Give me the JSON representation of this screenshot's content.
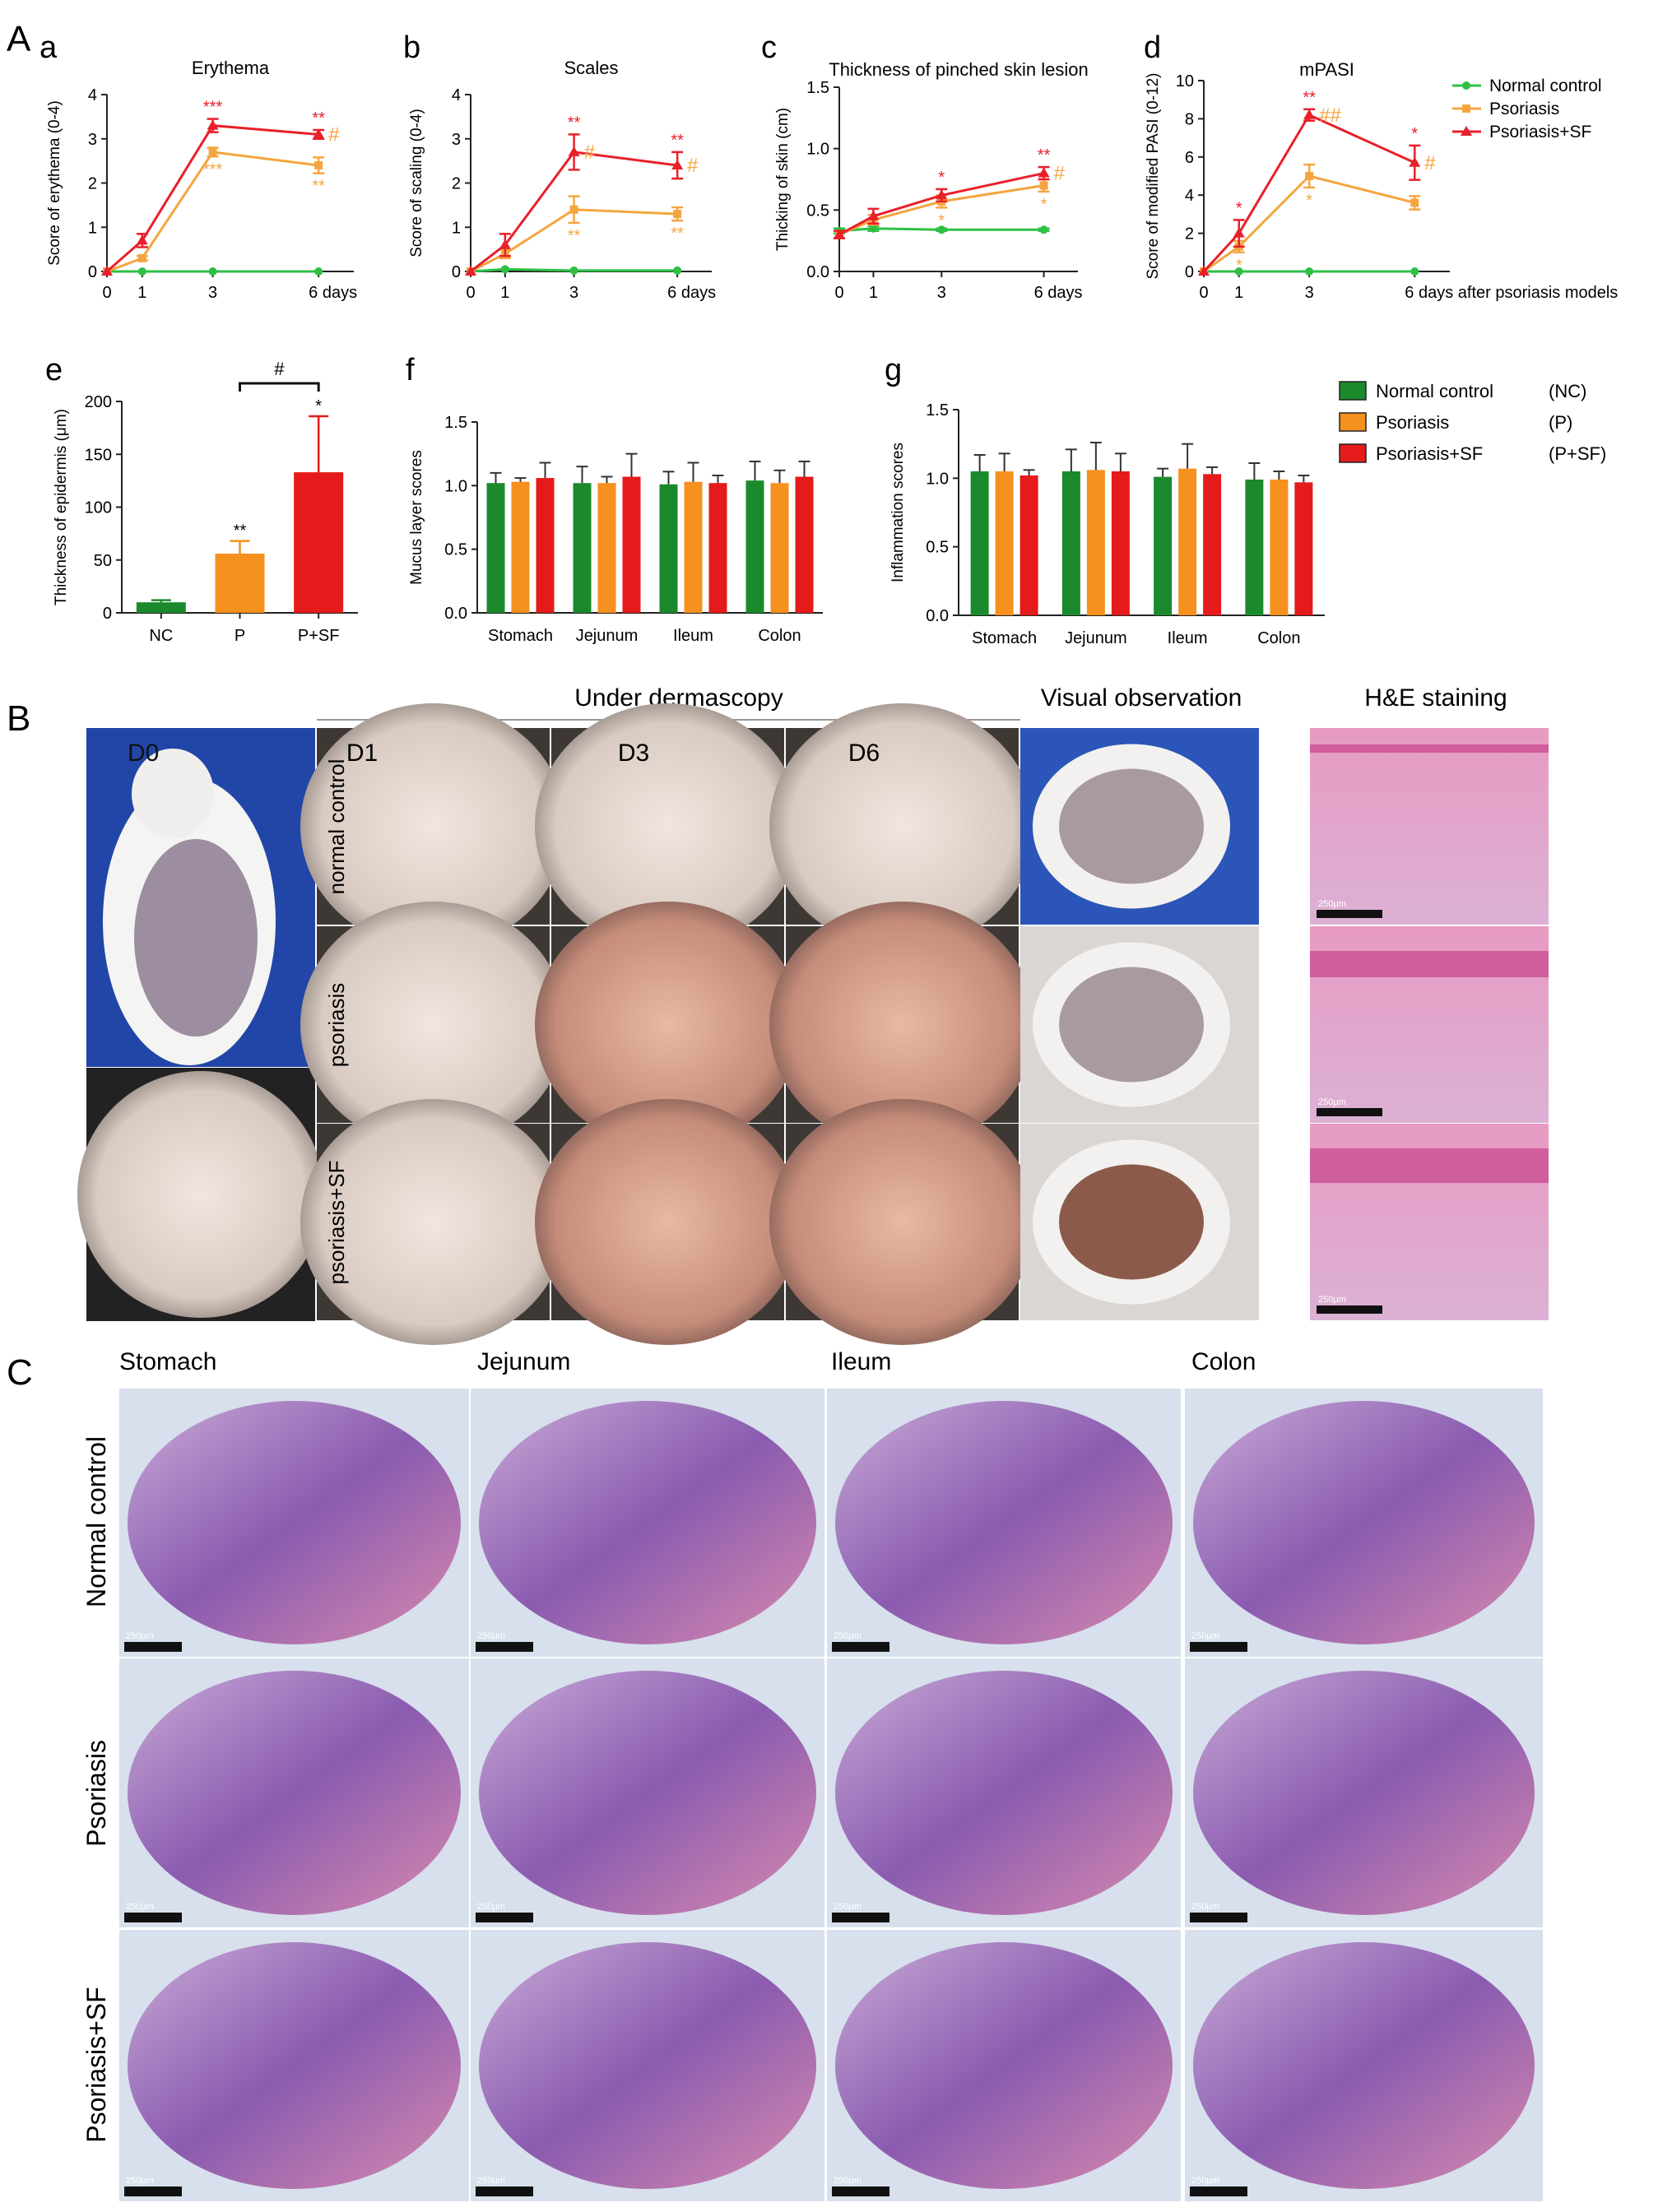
{
  "panel_labels": {
    "A": "A",
    "B": "B",
    "C": "C",
    "a": "a",
    "b": "b",
    "c": "c",
    "d": "d",
    "e": "e",
    "f": "f",
    "g": "g"
  },
  "colors": {
    "nc_line": "#2ec045",
    "p_line": "#f5a540",
    "psf_line": "#e8202a",
    "nc_bar": "#1b8a2c",
    "p_bar": "#f6901e",
    "psf_bar": "#e51a1a",
    "dermo": "#e3d9d2",
    "photo_blue": "#1f3f9a",
    "he_pink": "#dfa4c6",
    "he_purple": "#6a3d99"
  },
  "legend_top": {
    "items": [
      {
        "name": "Normal control",
        "color": "#2ec045"
      },
      {
        "name": "Psoriasis",
        "color": "#f5a540"
      },
      {
        "name": "Psoriasis+SF",
        "color": "#e8202a"
      }
    ]
  },
  "legend_bars": {
    "items": [
      {
        "name": "Normal control",
        "abbr": "(NC)",
        "color": "#1b8a2c"
      },
      {
        "name": "Psoriasis",
        "abbr": "(P)",
        "color": "#f6901e"
      },
      {
        "name": "Psoriasis+SF",
        "abbr": "(P+SF)",
        "color": "#e51a1a"
      }
    ]
  },
  "chart_data": [
    {
      "id": "a",
      "type": "line",
      "title": "Erythema",
      "ylabel": "Score of erythema (0-4)",
      "x": [
        0,
        1,
        3,
        6
      ],
      "x_ticks": [
        "0",
        "1",
        "3",
        "6 days"
      ],
      "ylim": [
        0,
        4
      ],
      "y_ticks": [
        "0",
        "1",
        "2",
        "3",
        "4"
      ],
      "series": [
        {
          "name": "Normal control",
          "values": [
            0,
            0,
            0,
            0
          ],
          "err": [
            0,
            0,
            0,
            0
          ]
        },
        {
          "name": "Psoriasis",
          "values": [
            0,
            0.3,
            2.7,
            2.4
          ],
          "err": [
            0,
            0.05,
            0.1,
            0.18
          ],
          "sig": [
            "",
            "",
            "***",
            "**"
          ]
        },
        {
          "name": "Psoriasis+SF",
          "values": [
            0,
            0.7,
            3.3,
            3.1
          ],
          "err": [
            0,
            0.15,
            0.15,
            0.1
          ],
          "sig": [
            "",
            "",
            "***",
            "**"
          ],
          "hash": [
            "",
            "",
            "",
            "#"
          ]
        }
      ]
    },
    {
      "id": "b",
      "type": "line",
      "title": "Scales",
      "ylabel": "Score of scaling (0-4)",
      "x": [
        0,
        1,
        3,
        6
      ],
      "x_ticks": [
        "0",
        "1",
        "3",
        "6 days"
      ],
      "ylim": [
        0,
        4
      ],
      "y_ticks": [
        "0",
        "1",
        "2",
        "3",
        "4"
      ],
      "series": [
        {
          "name": "Normal control",
          "values": [
            0,
            0.05,
            0.02,
            0.02
          ],
          "err": [
            0,
            0,
            0,
            0
          ]
        },
        {
          "name": "Psoriasis",
          "values": [
            0,
            0.4,
            1.4,
            1.3
          ],
          "err": [
            0,
            0.1,
            0.3,
            0.15
          ],
          "sig": [
            "",
            "",
            "**",
            "**"
          ]
        },
        {
          "name": "Psoriasis+SF",
          "values": [
            0,
            0.6,
            2.7,
            2.4
          ],
          "err": [
            0,
            0.25,
            0.4,
            0.3
          ],
          "sig": [
            "",
            "",
            "**",
            "**"
          ],
          "hash": [
            "",
            "",
            "#",
            "#"
          ]
        }
      ]
    },
    {
      "id": "c",
      "type": "line",
      "title": "Thickness of pinched skin lesion",
      "ylabel": "Thicking of skin (cm)",
      "x": [
        0,
        1,
        3,
        6
      ],
      "x_ticks": [
        "0",
        "1",
        "3",
        "6 days"
      ],
      "ylim": [
        0,
        1.5
      ],
      "y_ticks": [
        "0.0",
        "0.5",
        "1.0",
        "1.5"
      ],
      "series": [
        {
          "name": "Normal control",
          "values": [
            0.33,
            0.35,
            0.34,
            0.34
          ],
          "err": [
            0.02,
            0.02,
            0.01,
            0.01
          ]
        },
        {
          "name": "Psoriasis",
          "values": [
            0.3,
            0.42,
            0.57,
            0.7
          ],
          "err": [
            0.03,
            0.04,
            0.05,
            0.05
          ],
          "sig": [
            "",
            "",
            "*",
            "*"
          ]
        },
        {
          "name": "Psoriasis+SF",
          "values": [
            0.3,
            0.45,
            0.62,
            0.8
          ],
          "err": [
            0.03,
            0.06,
            0.05,
            0.05
          ],
          "sig": [
            "",
            "",
            "*",
            "**"
          ],
          "hash": [
            "",
            "",
            "",
            "#"
          ]
        }
      ]
    },
    {
      "id": "d",
      "type": "line",
      "title": "mPASI",
      "ylabel": "Score of modified PASI (0-12)",
      "x": [
        0,
        1,
        3,
        6
      ],
      "x_ticks": [
        "0",
        "1",
        "3",
        "6 days after psoriasis models"
      ],
      "ylim": [
        0,
        10
      ],
      "y_ticks": [
        "0",
        "2",
        "4",
        "6",
        "8",
        "10"
      ],
      "series": [
        {
          "name": "Normal control",
          "values": [
            0,
            0,
            0,
            0
          ],
          "err": [
            0,
            0,
            0,
            0
          ]
        },
        {
          "name": "Psoriasis",
          "values": [
            0,
            1.3,
            5,
            3.6
          ],
          "err": [
            0,
            0.3,
            0.6,
            0.35
          ],
          "sig": [
            "",
            "*",
            "*",
            ""
          ]
        },
        {
          "name": "Psoriasis+SF",
          "values": [
            0,
            2,
            8.2,
            5.7
          ],
          "err": [
            0,
            0.7,
            0.3,
            0.9
          ],
          "sig": [
            "",
            "*",
            "**",
            "*"
          ],
          "hash": [
            "",
            "",
            "##",
            "#"
          ]
        }
      ]
    },
    {
      "id": "e",
      "type": "bar",
      "ylabel": "Thickness of epidermis (μm)",
      "categories": [
        "NC",
        "P",
        "P+SF"
      ],
      "values": [
        10,
        56,
        133
      ],
      "err": [
        2,
        12,
        53
      ],
      "sig": [
        "",
        "**",
        "*"
      ],
      "bracket": {
        "from": 1,
        "to": 2,
        "label": "#"
      },
      "ylim": [
        0,
        200
      ],
      "y_ticks": [
        "0",
        "50",
        "100",
        "150",
        "200"
      ]
    },
    {
      "id": "f",
      "type": "bar",
      "ylabel": "Mucus layer scores",
      "categories": [
        "Stomach",
        "Jejunum",
        "Ileum",
        "Colon"
      ],
      "series": [
        {
          "name": "Normal control",
          "values": [
            1.02,
            1.02,
            1.01,
            1.04
          ],
          "err": [
            0.08,
            0.13,
            0.1,
            0.15
          ]
        },
        {
          "name": "Psoriasis",
          "values": [
            1.03,
            1.02,
            1.03,
            1.02
          ],
          "err": [
            0.03,
            0.05,
            0.15,
            0.1
          ]
        },
        {
          "name": "Psoriasis+SF",
          "values": [
            1.06,
            1.07,
            1.02,
            1.07
          ],
          "err": [
            0.12,
            0.18,
            0.06,
            0.12
          ]
        }
      ],
      "ylim": [
        0,
        1.5
      ],
      "y_ticks": [
        "0.0",
        "0.5",
        "1.0",
        "1.5"
      ]
    },
    {
      "id": "g",
      "type": "bar",
      "ylabel": "Inflammation scores",
      "categories": [
        "Stomach",
        "Jejunum",
        "Ileum",
        "Colon"
      ],
      "series": [
        {
          "name": "Normal control",
          "values": [
            1.05,
            1.05,
            1.01,
            0.99
          ],
          "err": [
            0.12,
            0.16,
            0.06,
            0.12
          ]
        },
        {
          "name": "Psoriasis",
          "values": [
            1.05,
            1.06,
            1.07,
            0.99
          ],
          "err": [
            0.13,
            0.2,
            0.18,
            0.06
          ]
        },
        {
          "name": "Psoriasis+SF",
          "values": [
            1.02,
            1.05,
            1.03,
            0.97
          ],
          "err": [
            0.04,
            0.13,
            0.05,
            0.05
          ]
        }
      ],
      "ylim": [
        0,
        1.5
      ],
      "y_ticks": [
        "0.0",
        "0.5",
        "1.0",
        "1.5"
      ]
    }
  ],
  "section_b": {
    "header_dermascopy": "Under dermascopy",
    "header_visual": "Visual observation",
    "header_he": "H&E staining",
    "day_labels": [
      "D0",
      "D1",
      "D3",
      "D6"
    ],
    "row_labels": [
      "normal control",
      "psoriasis",
      "psoriasis+SF"
    ],
    "scale_bar": "250μm"
  },
  "section_c": {
    "columns": [
      "Stomach",
      "Jejunum",
      "Ileum",
      "Colon"
    ],
    "rows": [
      "Normal control",
      "Psoriasis",
      "Psoriasis+SF"
    ],
    "scale_bar": "250μm"
  }
}
